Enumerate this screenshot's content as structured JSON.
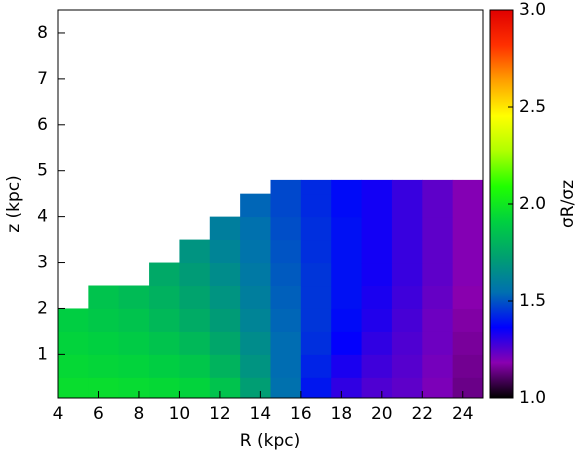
{
  "chart_data": {
    "type": "heatmap",
    "xlabel": "R (kpc)",
    "ylabel": "z (kpc)",
    "colorbar_label": "σR/σz",
    "x_edges": [
      4,
      5.5,
      7,
      8.5,
      10,
      11.5,
      13,
      14.5,
      16,
      17.5,
      19,
      20.5,
      22,
      23.5,
      25
    ],
    "y_edges": [
      0.05,
      0.5,
      1,
      1.5,
      2,
      2.5,
      3,
      3.5,
      4,
      4.5,
      4.8
    ],
    "values": [
      [
        1.96,
        1.96,
        1.95,
        1.94,
        1.92,
        1.86,
        1.72,
        1.55,
        1.4,
        1.3,
        1.26,
        1.24,
        1.2,
        1.14
      ],
      [
        1.94,
        1.93,
        1.92,
        1.9,
        1.87,
        1.8,
        1.68,
        1.54,
        1.42,
        1.33,
        1.28,
        1.25,
        1.21,
        1.15
      ],
      [
        1.92,
        1.91,
        1.89,
        1.86,
        1.82,
        1.75,
        1.65,
        1.54,
        1.44,
        1.36,
        1.3,
        1.26,
        1.22,
        1.16
      ],
      [
        1.9,
        1.88,
        1.86,
        1.82,
        1.77,
        1.71,
        1.62,
        1.53,
        1.45,
        1.38,
        1.32,
        1.27,
        1.22,
        1.17
      ],
      [
        null,
        1.86,
        1.83,
        1.79,
        1.74,
        1.68,
        1.6,
        1.52,
        1.45,
        1.39,
        1.33,
        1.28,
        1.23,
        1.18
      ],
      [
        null,
        null,
        null,
        1.76,
        1.71,
        1.65,
        1.58,
        1.51,
        1.45,
        1.39,
        1.34,
        1.29,
        1.24,
        1.19
      ],
      [
        null,
        null,
        null,
        null,
        1.68,
        1.62,
        1.56,
        1.5,
        1.44,
        1.39,
        1.34,
        1.29,
        1.24,
        1.19
      ],
      [
        null,
        null,
        null,
        null,
        null,
        1.6,
        1.55,
        1.49,
        1.44,
        1.39,
        1.34,
        1.29,
        1.24,
        1.19
      ],
      [
        null,
        null,
        null,
        null,
        null,
        null,
        1.53,
        1.48,
        1.43,
        1.38,
        1.34,
        1.29,
        1.24,
        1.19
      ],
      [
        null,
        null,
        null,
        null,
        null,
        null,
        null,
        1.48,
        1.43,
        1.38,
        1.34,
        1.29,
        1.24,
        1.19
      ]
    ],
    "xlim": [
      4,
      25
    ],
    "ylim": [
      0.05,
      8.5
    ],
    "xticks": [
      4,
      6,
      8,
      10,
      12,
      14,
      16,
      18,
      20,
      22,
      24
    ],
    "yticks": [
      1,
      2,
      3,
      4,
      5,
      6,
      7,
      8
    ],
    "clim": [
      1,
      3
    ],
    "cticks": [
      {
        "value": 1,
        "label": "1.0"
      },
      {
        "value": 1.5,
        "label": "1.5"
      },
      {
        "value": 2,
        "label": "2.0"
      },
      {
        "value": 2.5,
        "label": "2.5"
      },
      {
        "value": 3,
        "label": "3.0"
      }
    ],
    "colormap": [
      "#000000",
      "#8a00b0",
      "#0000ff",
      "#0070b0",
      "#00a070",
      "#00d040",
      "#20ff00",
      "#b0ff00",
      "#ffff00",
      "#ffa000",
      "#ff3000",
      "#e00000"
    ]
  }
}
